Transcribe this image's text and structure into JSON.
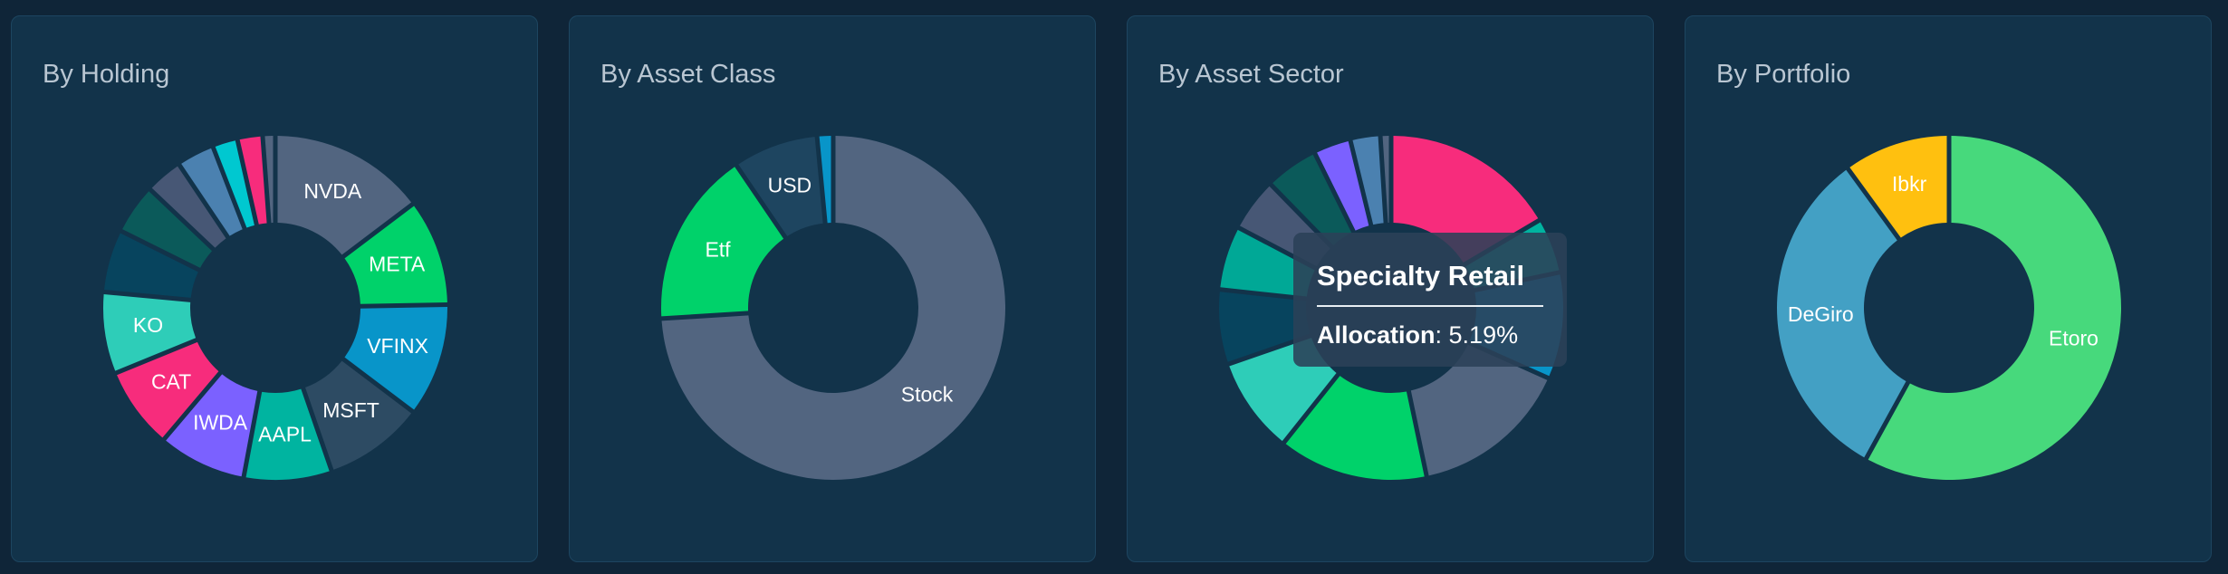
{
  "card_titles": [
    "By Holding",
    "By Asset Class",
    "By Asset Sector",
    "By Portfolio"
  ],
  "chart_data": [
    {
      "type": "pie",
      "title": "By Holding",
      "slices": [
        {
          "label": "NVDA",
          "value": 12.5,
          "color": "#526580"
        },
        {
          "label": "META",
          "value": 8.5,
          "color": "#00d26a"
        },
        {
          "label": "VFINX",
          "value": 9.0,
          "color": "#0895c9"
        },
        {
          "label": "MSFT",
          "value": 8.0,
          "color": "#2d4b63"
        },
        {
          "label": "AAPL",
          "value": 7.0,
          "color": "#00b4a0"
        },
        {
          "label": "IWDA",
          "value": 7.0,
          "color": "#7b61ff"
        },
        {
          "label": "CAT",
          "value": 6.5,
          "color": "#f72c7c"
        },
        {
          "label": "KO",
          "value": 6.5,
          "color": "#2ecdb8"
        },
        {
          "label": "",
          "value": 5.0,
          "color": "#07445e"
        },
        {
          "label": "",
          "value": 4.0,
          "color": "#0b5a5a"
        },
        {
          "label": "",
          "value": 3.0,
          "color": "#475775"
        },
        {
          "label": "",
          "value": 3.0,
          "color": "#4b81b0"
        },
        {
          "label": "",
          "value": 2.0,
          "color": "#00c8d0"
        },
        {
          "label": "",
          "value": 2.0,
          "color": "#f72c7c"
        },
        {
          "label": "",
          "value": 1.0,
          "color": "#526580"
        }
      ]
    },
    {
      "type": "pie",
      "title": "By Asset Class",
      "slices": [
        {
          "label": "Stock",
          "value": 74.0,
          "color": "#526580"
        },
        {
          "label": "Etf",
          "value": 16.5,
          "color": "#00d26a"
        },
        {
          "label": "USD",
          "value": 8.0,
          "color": "#1e4560"
        },
        {
          "label": "",
          "value": 1.5,
          "color": "#0895c9"
        }
      ]
    },
    {
      "type": "pie",
      "title": "By Asset Sector",
      "slices": [
        {
          "label": "",
          "value": 16.5,
          "color": "#f72c7c"
        },
        {
          "label": "",
          "value": 5.19,
          "color": "#00b4a0"
        },
        {
          "label": "",
          "value": 10.0,
          "color": "#0895c9"
        },
        {
          "label": "",
          "value": 15.0,
          "color": "#526580"
        },
        {
          "label": "",
          "value": 14.0,
          "color": "#00d26a"
        },
        {
          "label": "",
          "value": 9.0,
          "color": "#2ecdb8"
        },
        {
          "label": "",
          "value": 7.0,
          "color": "#07445e"
        },
        {
          "label": "",
          "value": 6.0,
          "color": "#00a896"
        },
        {
          "label": "",
          "value": 5.0,
          "color": "#475775"
        },
        {
          "label": "",
          "value": 5.0,
          "color": "#0b5a5a"
        },
        {
          "label": "",
          "value": 3.5,
          "color": "#7b61ff"
        },
        {
          "label": "",
          "value": 2.8,
          "color": "#4b81b0"
        },
        {
          "label": "",
          "value": 1.0,
          "color": "#526580"
        }
      ]
    },
    {
      "type": "pie",
      "title": "By Portfolio",
      "slices": [
        {
          "label": "Etoro",
          "value": 58.0,
          "color": "#47d97c"
        },
        {
          "label": "DeGiro",
          "value": 32.0,
          "color": "#43a0c4"
        },
        {
          "label": "Ibkr",
          "value": 10.0,
          "color": "#ffc00f"
        }
      ]
    }
  ],
  "tooltip": {
    "title": "Specialty Retail",
    "label": "Allocation",
    "value": "5.19%"
  }
}
